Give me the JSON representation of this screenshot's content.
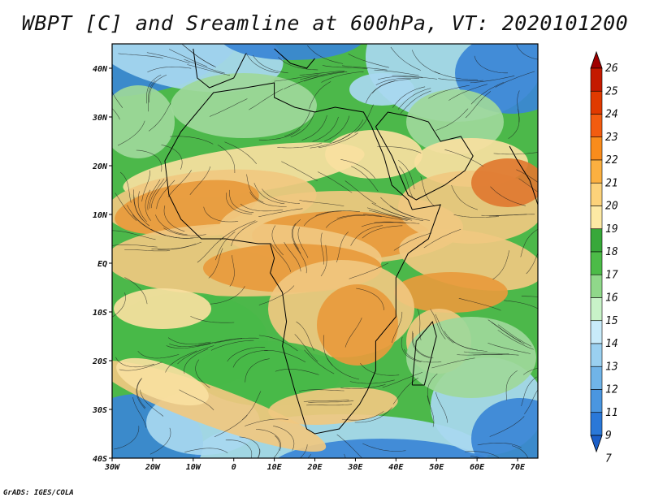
{
  "title": "WBPT [C] and Sreamline at 600hPa, VT: 2020101200",
  "credit": "GrADS: IGES/COLA",
  "lon_labels": [
    "30W",
    "20W",
    "10W",
    "0",
    "10E",
    "20E",
    "30E",
    "40E",
    "50E",
    "60E",
    "70E"
  ],
  "lat_labels": [
    "40N",
    "30N",
    "20N",
    "10N",
    "EQ",
    "10S",
    "20S",
    "30S",
    "40S"
  ],
  "map_extent": {
    "lon": [
      -30,
      75
    ],
    "lat": [
      -40,
      45
    ]
  },
  "colorbar": {
    "labels": [
      "26",
      "25",
      "24",
      "23",
      "22",
      "21",
      "20",
      "19",
      "18",
      "17",
      "16",
      "15",
      "14",
      "13",
      "12",
      "11",
      "9",
      "7"
    ],
    "colors": [
      "#a00000",
      "#c41a00",
      "#e03a00",
      "#f25c10",
      "#f98c1c",
      "#fbb040",
      "#fcd27a",
      "#fde9a4",
      "#38a83a",
      "#4cbb48",
      "#90d88a",
      "#c8f2c8",
      "#c8ebfa",
      "#9ad0f0",
      "#70b4e8",
      "#4a96e0",
      "#2a78d8",
      "#1a5ec8"
    ]
  },
  "field_colors": {
    "cold_blue": "#3a86d6",
    "light_blue": "#a8d8f0",
    "light_green": "#9ed89a",
    "green": "#48b848",
    "pale_yellow": "#f8e0a0",
    "tan": "#f0c880",
    "orange": "#e89a3c",
    "deep_orange": "#e07830"
  }
}
